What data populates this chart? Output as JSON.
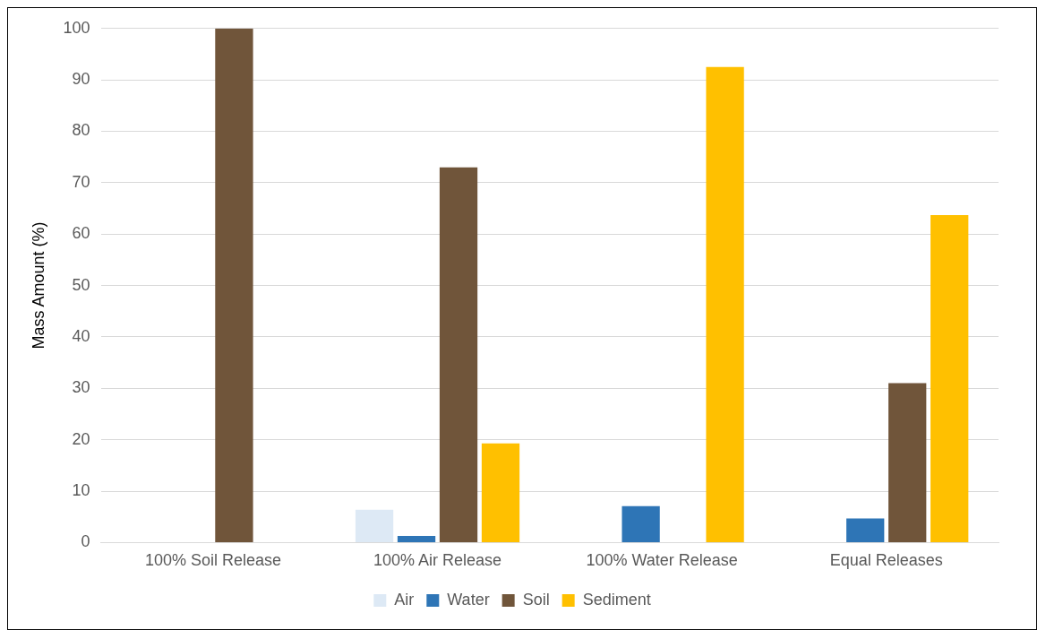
{
  "chart_data": {
    "type": "bar",
    "ylabel": "Mass Amount (%)",
    "categories": [
      "100% Soil Release",
      "100% Air Release",
      "100% Water Release",
      "Equal Releases"
    ],
    "series": [
      {
        "name": "Air",
        "color": "#dde9f5",
        "values": [
          0,
          6.4,
          0,
          0
        ]
      },
      {
        "name": "Water",
        "color": "#2e75b6",
        "values": [
          0,
          1.3,
          7.1,
          4.7
        ]
      },
      {
        "name": "Soil",
        "color": "#70553a",
        "values": [
          100,
          73,
          0,
          31
        ]
      },
      {
        "name": "Sediment",
        "color": "#ffc000",
        "values": [
          0,
          19.3,
          92.5,
          63.7
        ]
      }
    ],
    "ylim": [
      0,
      100
    ],
    "yticks": [
      0,
      10,
      20,
      30,
      40,
      50,
      60,
      70,
      80,
      90,
      100
    ],
    "grid": "y",
    "legend": "bottom"
  }
}
